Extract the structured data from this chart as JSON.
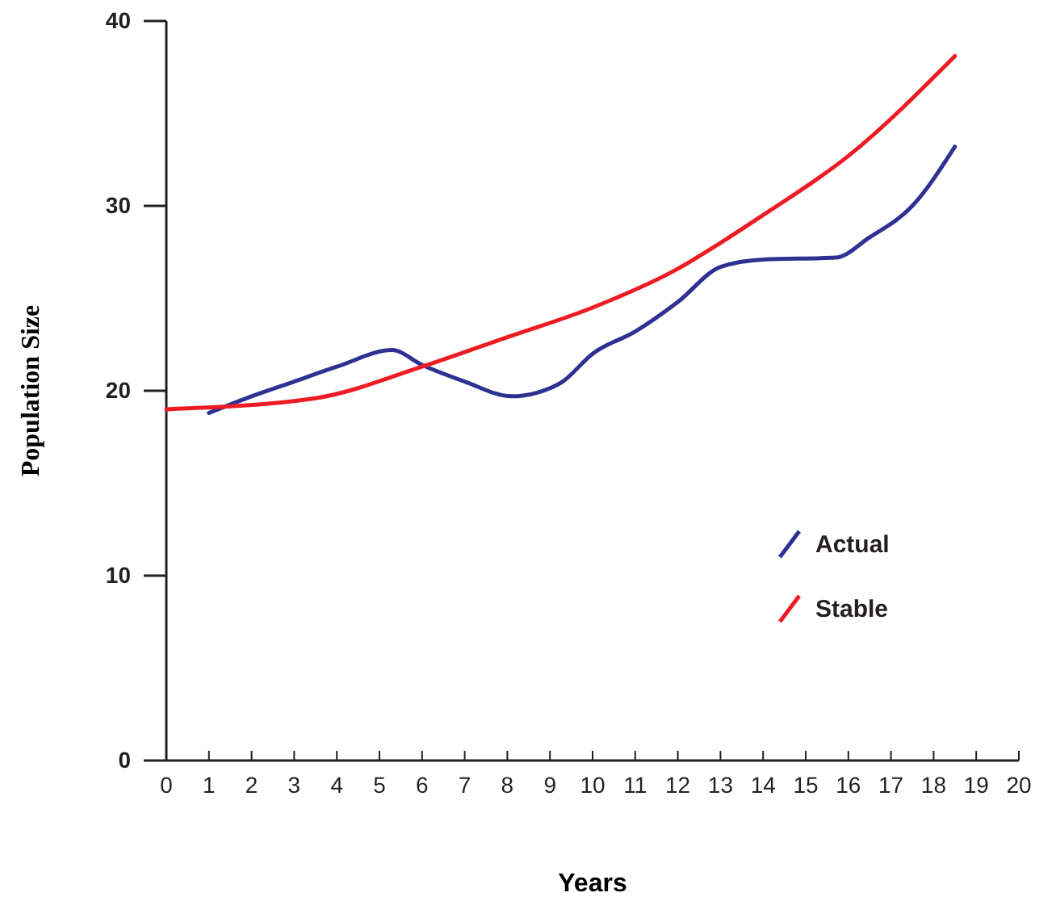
{
  "chart_data": {
    "type": "line",
    "xlabel": "Years",
    "ylabel": "Population Size",
    "xlim": [
      0,
      20
    ],
    "xticks": [
      0,
      1,
      2,
      3,
      4,
      5,
      6,
      7,
      8,
      9,
      10,
      11,
      12,
      13,
      14,
      15,
      16,
      17,
      18,
      19,
      20
    ],
    "ylim": [
      0,
      40
    ],
    "yticks": [
      0,
      10,
      20,
      30,
      40
    ],
    "legend": "right",
    "grid": false,
    "marker": "none",
    "line_style": "solid",
    "series": [
      {
        "name": "Actual",
        "color": "#2e3192",
        "x": [
          1,
          2,
          3,
          4,
          5.3,
          6,
          7,
          8.1,
          8.7,
          9.3,
          10,
          11,
          12,
          13,
          14,
          15.7,
          16.5,
          17.5,
          18.5
        ],
        "values": [
          18.8,
          19.7,
          20.5,
          21.3,
          22.2,
          21.4,
          20.5,
          19.7,
          19.9,
          20.5,
          22,
          23.2,
          24.8,
          26.7,
          27.1,
          27.2,
          28.3,
          30,
          33.2
        ]
      },
      {
        "name": "Stable",
        "color": "#ed1c24",
        "x": [
          0,
          3.5,
          6,
          8,
          10,
          12,
          13,
          14,
          16,
          18.5
        ],
        "values": [
          19,
          19.6,
          21.3,
          22.9,
          24.5,
          26.6,
          28,
          29.5,
          32.7,
          38.1
        ]
      }
    ]
  }
}
